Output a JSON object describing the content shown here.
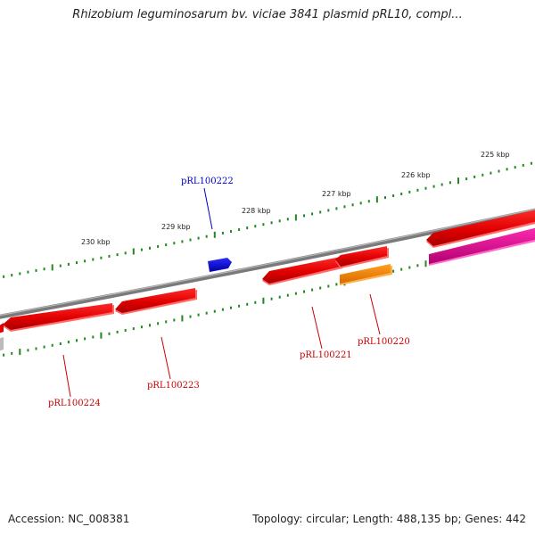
{
  "title": "Rhizobium leguminosarum bv. viciae 3841 plasmid pRL10, compl...",
  "footer": {
    "accession": "Accession: NC_008381",
    "topology": "Topology: circular; Length: 488,135 bp; Genes: 442"
  },
  "ticks": {
    "outer_labels": [
      "230 kbp",
      "229 kbp",
      "228 kbp",
      "227 kbp",
      "226 kbp",
      "225 kbp"
    ]
  },
  "genes": [
    {
      "id": "pRL100224",
      "color": "#dd0000",
      "label_color": "#cc0000",
      "strand": "reverse"
    },
    {
      "id": "pRL100223",
      "color": "#dd0000",
      "label_color": "#cc0000",
      "strand": "reverse"
    },
    {
      "id": "pRL100222",
      "color": "#0000dd",
      "label_color": "#0000bb",
      "strand": "forward"
    },
    {
      "id": "pRL100221",
      "color": "#dd0000",
      "label_color": "#cc0000",
      "strand": "reverse"
    },
    {
      "id": "pRL100220",
      "color": "#ff8800",
      "label_color": "#cc0000",
      "strand": "reverse"
    }
  ],
  "colors": {
    "backbone": "#808080",
    "tick": "#228822",
    "magenta_feature": "#e0109a"
  }
}
